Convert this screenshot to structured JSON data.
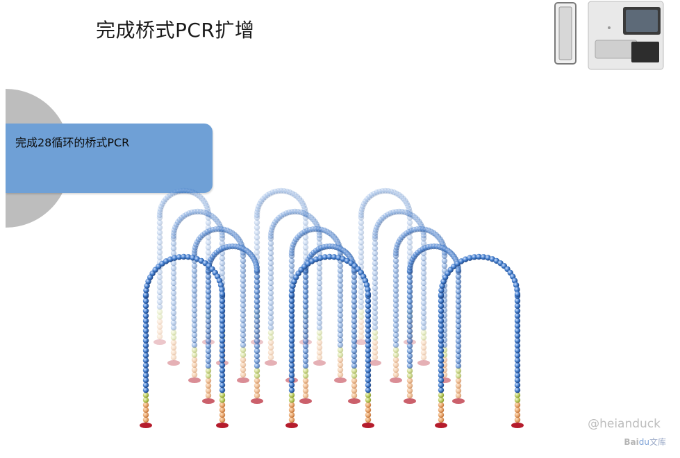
{
  "slide": {
    "title": "完成桥式PCR扩增",
    "callout_text": "完成28循环的桥式PCR",
    "watermark": "@heianduck",
    "baidu_logo_a": "Bai",
    "baidu_logo_b": "du",
    "baidu_logo_c": "文库"
  },
  "colors": {
    "callout_blue": "#6fa0d6",
    "callout_gray": "#bdbdbd",
    "bead_blue": "#3c78c8",
    "bead_orange": "#e6a36a",
    "bead_green": "#b7c85a",
    "anchor_red": "#b51c2c"
  },
  "icons": {
    "device": "sequencer-icon",
    "diagram": "bridge-pcr-clusters-illustration"
  }
}
